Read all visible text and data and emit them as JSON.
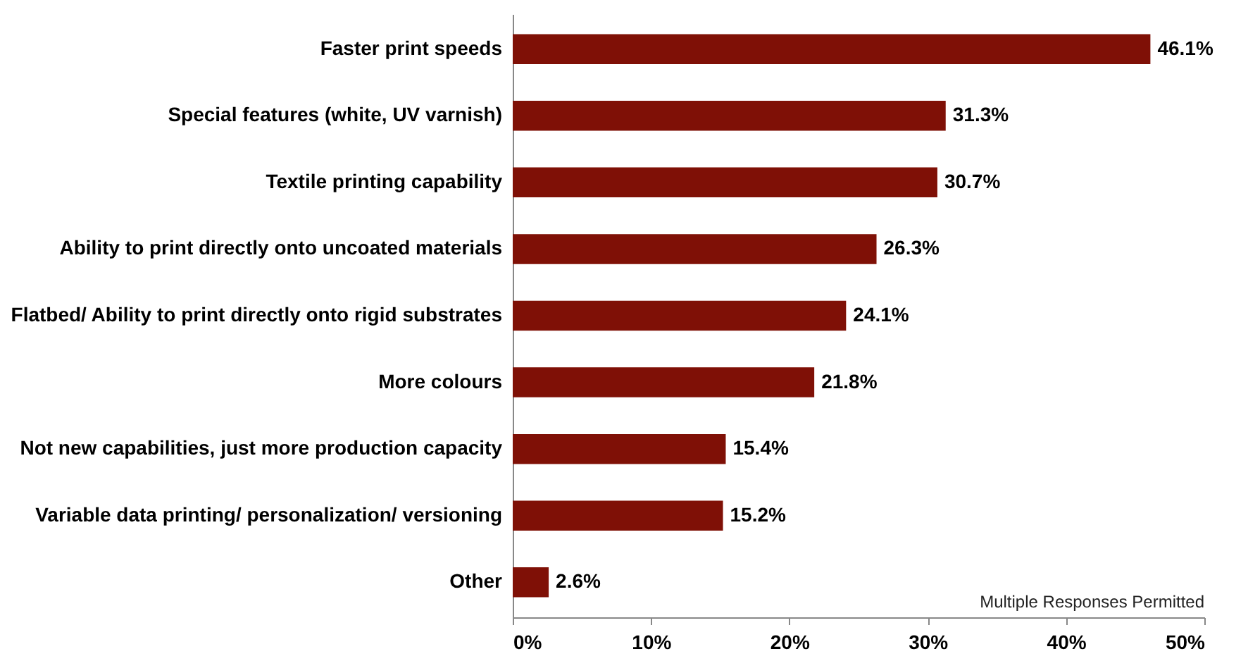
{
  "chart_data": {
    "type": "bar",
    "orientation": "horizontal",
    "categories": [
      "Faster print speeds",
      "Special features (white, UV varnish)",
      "Textile printing capability",
      "Ability to print directly onto uncoated materials",
      "Flatbed/ Ability to print directly onto rigid substrates",
      "More colours",
      "Not new capabilities, just more production capacity",
      "Variable data printing/ personalization/ versioning",
      "Other"
    ],
    "values": [
      46.1,
      31.3,
      30.7,
      26.3,
      24.1,
      21.8,
      15.4,
      15.2,
      2.6
    ],
    "value_labels": [
      "46.1%",
      "31.3%",
      "30.7%",
      "26.3%",
      "24.1%",
      "21.8%",
      "15.4%",
      "15.2%",
      "2.6%"
    ],
    "color": "#7f1006",
    "xlim": [
      0,
      50
    ],
    "xticks": [
      {
        "value": 0,
        "label": "0%"
      },
      {
        "value": 10,
        "label": "10%"
      },
      {
        "value": 20,
        "label": "20%"
      },
      {
        "value": 30,
        "label": "30%"
      },
      {
        "value": 40,
        "label": "40%"
      },
      {
        "value": 50,
        "label": "50%"
      }
    ],
    "annotations": [
      "Multiple Responses Permitted"
    ],
    "grid": false
  }
}
